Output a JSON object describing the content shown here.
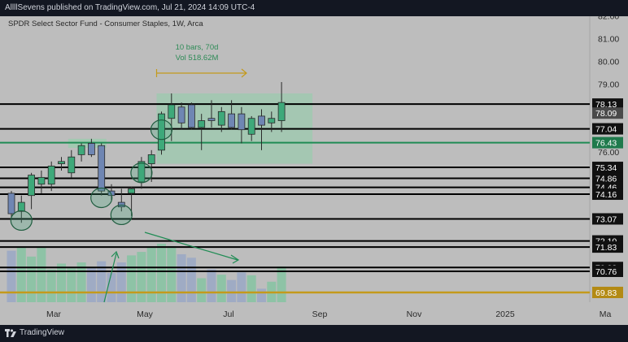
{
  "header": {
    "published_text": "AllllSevens published on TradingView.com, Jul 21, 2024 14:09 UTC-4"
  },
  "footer": {
    "logo_text": "TradingView",
    "logo_icon": "tradingview-logo-icon"
  },
  "colors": {
    "bull": "#3ea97a",
    "bear": "#6f86b3",
    "level_line": "#000000",
    "green_line": "#1f8c54",
    "gold_line": "#c49a1c",
    "range_fill": "#8fd0a9",
    "label_bg": "#111111",
    "green_label_bg": "#1f7a4c",
    "gold_label_bg": "#b38a14"
  },
  "chart_data": {
    "type": "candlestick",
    "title": "SPDR Select Sector Fund - Consumer Staples, 1W, Arca",
    "timeframe": "1W",
    "ylim": [
      69.4,
      82.0
    ],
    "y_ticks": [
      "79.00",
      "80.00",
      "81.00",
      "82.00",
      "76.00"
    ],
    "x_ticks": [
      "Mar",
      "May",
      "Jul",
      "Sep",
      "Nov",
      "2025",
      "Ma"
    ],
    "candles": [
      {
        "o": 74.2,
        "h": 74.3,
        "l": 73.1,
        "c": 73.3
      },
      {
        "o": 73.4,
        "h": 74.1,
        "l": 72.9,
        "c": 73.8
      },
      {
        "o": 74.1,
        "h": 75.1,
        "l": 73.5,
        "c": 75.0
      },
      {
        "o": 74.6,
        "h": 75.2,
        "l": 74.2,
        "c": 74.9
      },
      {
        "o": 74.6,
        "h": 75.6,
        "l": 74.3,
        "c": 75.4
      },
      {
        "o": 75.5,
        "h": 75.8,
        "l": 75.2,
        "c": 75.6
      },
      {
        "o": 75.1,
        "h": 76.1,
        "l": 74.9,
        "c": 75.8
      },
      {
        "o": 75.9,
        "h": 76.4,
        "l": 75.6,
        "c": 76.3
      },
      {
        "o": 76.4,
        "h": 76.6,
        "l": 75.8,
        "c": 75.9
      },
      {
        "o": 76.3,
        "h": 76.4,
        "l": 74.1,
        "c": 74.3
      },
      {
        "o": 74.3,
        "h": 74.6,
        "l": 73.9,
        "c": 74.1
      },
      {
        "o": 73.8,
        "h": 74.4,
        "l": 73.4,
        "c": 73.6
      },
      {
        "o": 74.2,
        "h": 74.5,
        "l": 73.2,
        "c": 74.4
      },
      {
        "o": 74.7,
        "h": 75.8,
        "l": 74.4,
        "c": 75.6
      },
      {
        "o": 75.5,
        "h": 76.1,
        "l": 74.7,
        "c": 75.9
      },
      {
        "o": 76.1,
        "h": 77.8,
        "l": 75.9,
        "c": 77.7
      },
      {
        "o": 77.5,
        "h": 78.6,
        "l": 76.5,
        "c": 78.1
      },
      {
        "o": 78.0,
        "h": 78.2,
        "l": 77.0,
        "c": 77.3
      },
      {
        "o": 78.1,
        "h": 78.2,
        "l": 77.0,
        "c": 77.1
      },
      {
        "o": 77.1,
        "h": 77.7,
        "l": 76.1,
        "c": 77.4
      },
      {
        "o": 77.5,
        "h": 78.3,
        "l": 77.1,
        "c": 77.4
      },
      {
        "o": 77.2,
        "h": 78.0,
        "l": 76.9,
        "c": 77.8
      },
      {
        "o": 77.7,
        "h": 78.3,
        "l": 77.0,
        "c": 77.1
      },
      {
        "o": 77.7,
        "h": 78.0,
        "l": 76.4,
        "c": 77.0
      },
      {
        "o": 76.8,
        "h": 77.6,
        "l": 76.5,
        "c": 77.5
      },
      {
        "o": 77.6,
        "h": 77.9,
        "l": 76.1,
        "c": 77.2
      },
      {
        "o": 77.3,
        "h": 77.8,
        "l": 76.9,
        "c": 77.5
      },
      {
        "o": 77.4,
        "h": 79.1,
        "l": 76.9,
        "c": 78.2
      }
    ],
    "volume": {
      "values": [
        0.88,
        0.95,
        0.78,
        0.95,
        0.56,
        0.66,
        0.58,
        0.68,
        0.59,
        0.7,
        0.5,
        0.68,
        0.8,
        0.86,
        0.94,
        1.0,
        0.96,
        0.82,
        0.76,
        0.41,
        0.56,
        0.47,
        0.38,
        0.51,
        0.46,
        0.23,
        0.35,
        0.61
      ]
    },
    "levels": [
      {
        "value": 78.13,
        "label": "78.13",
        "style": "black"
      },
      {
        "value": 78.09,
        "label": "78.09",
        "style": "dark"
      },
      {
        "value": 77.04,
        "label": "77.04",
        "style": "black"
      },
      {
        "value": 76.43,
        "label": "76.43",
        "style": "green"
      },
      {
        "value": 75.34,
        "label": "75.34",
        "style": "black"
      },
      {
        "value": 74.86,
        "label": "74.86",
        "style": "black"
      },
      {
        "value": 74.46,
        "label": "74.46",
        "style": "black"
      },
      {
        "value": 74.16,
        "label": "74.16",
        "style": "black"
      },
      {
        "value": 73.07,
        "label": "73.07",
        "style": "black"
      },
      {
        "value": 72.1,
        "label": "72.10",
        "style": "black"
      },
      {
        "value": 71.83,
        "label": "71.83",
        "style": "black"
      },
      {
        "value": 70.93,
        "label": "70.93",
        "style": "black"
      },
      {
        "value": 70.76,
        "label": "70.76",
        "style": "black"
      },
      {
        "value": 69.83,
        "label": "69.83",
        "style": "gold"
      }
    ],
    "measure": {
      "bars_text": "10 bars, 70d",
      "vol_text": "Vol 518.62M"
    },
    "circles": [
      {
        "bar": 1,
        "value": 73.0
      },
      {
        "bar": 9,
        "value": 74.0
      },
      {
        "bar": 11,
        "value": 73.25
      },
      {
        "bar": 13,
        "value": 75.1
      },
      {
        "bar": 15,
        "value": 77.0
      }
    ]
  }
}
